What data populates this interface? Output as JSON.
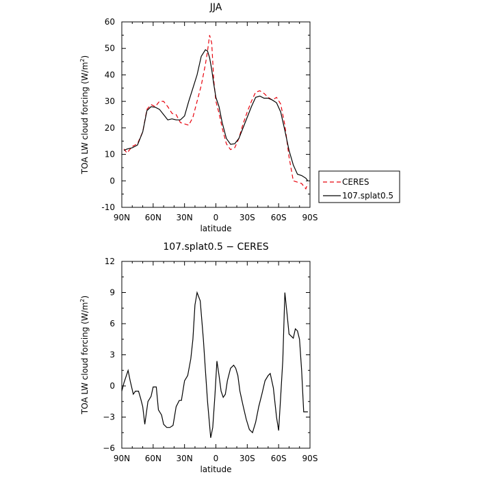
{
  "chart_data": [
    {
      "type": "line",
      "title": "JJA",
      "xlabel": "latitude",
      "ylabel": "TOA LW cloud forcing (W/m",
      "ylabel_sup": "2",
      "ylabel_end": ")",
      "xlim": [
        90,
        -90
      ],
      "ylim": [
        -10,
        60
      ],
      "x_ticks": [
        90,
        60,
        30,
        0,
        -30,
        -60,
        -90
      ],
      "x_tick_labels": [
        "90N",
        "60N",
        "30N",
        "0",
        "30S",
        "60S",
        "90S"
      ],
      "y_ticks": [
        -10,
        0,
        10,
        20,
        30,
        40,
        50,
        60
      ],
      "y_tick_labels": [
        "-10",
        "0",
        "10",
        "20",
        "30",
        "40",
        "50",
        "60"
      ],
      "legend": "outside-right",
      "series": [
        {
          "name": "CERES",
          "color": "#e8000b",
          "dash": "dashed",
          "x": [
            88,
            85,
            80,
            75,
            70,
            66,
            62,
            58,
            54,
            50,
            46,
            42,
            38,
            34,
            30,
            26,
            22,
            18,
            14,
            10,
            8,
            6,
            4,
            2,
            0,
            -3,
            -6,
            -10,
            -14,
            -18,
            -22,
            -26,
            -30,
            -34,
            -38,
            -42,
            -46,
            -50,
            -54,
            -58,
            -62,
            -66,
            -70,
            -74,
            -78,
            -82,
            -86,
            -88
          ],
          "y": [
            12,
            10.5,
            13,
            14,
            18.5,
            27,
            28.8,
            28,
            30,
            30,
            28,
            25.5,
            25,
            22,
            21.5,
            21,
            24,
            30,
            36,
            44,
            49,
            55,
            52,
            38,
            30,
            25.5,
            20,
            14,
            11.8,
            12.5,
            16,
            21.5,
            26,
            30,
            33.5,
            34,
            33,
            31.5,
            30.5,
            31.5,
            29,
            21,
            9,
            0,
            -0.5,
            -1,
            -3,
            -1
          ]
        },
        {
          "name": "107.splat0.5",
          "color": "#000000",
          "dash": "solid",
          "x": [
            88,
            85,
            80,
            75,
            70,
            66,
            62,
            58,
            54,
            50,
            46,
            42,
            38,
            34,
            30,
            26,
            22,
            18,
            14,
            10,
            8,
            6,
            4,
            2,
            0,
            -3,
            -6,
            -10,
            -14,
            -18,
            -22,
            -26,
            -30,
            -34,
            -38,
            -42,
            -46,
            -50,
            -54,
            -58,
            -62,
            -66,
            -70,
            -74,
            -78,
            -82,
            -86,
            -88
          ],
          "y": [
            11.5,
            12,
            12.5,
            13.5,
            18.5,
            26.5,
            28,
            27.8,
            27,
            25,
            23,
            23.4,
            23,
            23,
            24.5,
            30,
            35,
            40,
            47,
            49.5,
            49,
            46.5,
            42,
            36.5,
            31.5,
            28,
            22,
            16,
            13.8,
            14,
            16,
            20,
            24,
            28,
            31.5,
            32,
            31.2,
            31.2,
            30.5,
            29.5,
            26,
            19,
            11.5,
            6,
            2.5,
            2,
            1,
            0
          ]
        }
      ]
    },
    {
      "type": "line",
      "title": "107.splat0.5 − CERES",
      "xlabel": "latitude",
      "ylabel": "TOA LW cloud forcing (W/m",
      "ylabel_sup": "2",
      "ylabel_end": ")",
      "xlim": [
        90,
        -90
      ],
      "ylim": [
        -6,
        12
      ],
      "x_ticks": [
        90,
        60,
        30,
        0,
        -30,
        -60,
        -90
      ],
      "x_tick_labels": [
        "90N",
        "60N",
        "30N",
        "0",
        "30S",
        "60S",
        "90S"
      ],
      "y_ticks": [
        -6,
        -3,
        0,
        3,
        6,
        9,
        12
      ],
      "y_tick_labels": [
        "−6",
        "−3",
        "0",
        "3",
        "6",
        "9",
        "12"
      ],
      "legend": "none",
      "series": [
        {
          "color": "#000000",
          "dash": "solid",
          "x": [
            90,
            88,
            84,
            82,
            79,
            77,
            74,
            72,
            70,
            68,
            65,
            62,
            60,
            57,
            55,
            52,
            50,
            47,
            44,
            41,
            38,
            35,
            33,
            30,
            27,
            24,
            22,
            20,
            18,
            15,
            12,
            10,
            8,
            5,
            3,
            1,
            -1,
            -3,
            -5,
            -7,
            -9,
            -11,
            -14,
            -17,
            -19,
            -21,
            -23,
            -26,
            -29,
            -32,
            -35,
            -38,
            -41,
            -44,
            -47,
            -50,
            -52,
            -55,
            -58,
            -60,
            -62,
            -64,
            -66,
            -68,
            -70,
            -72,
            -74,
            -76,
            -78,
            -80,
            -82,
            -84,
            -86,
            -88
          ],
          "y": [
            -0.5,
            0.3,
            1.5,
            0.5,
            -0.8,
            -0.5,
            -0.5,
            -1.2,
            -2,
            -3.7,
            -1.5,
            -1,
            -0.1,
            -0.1,
            -2.3,
            -2.8,
            -3.7,
            -4,
            -4,
            -3.8,
            -2,
            -1.4,
            -1.4,
            0.5,
            1,
            2.6,
            4.5,
            7.8,
            9,
            8.2,
            4.5,
            1.5,
            -1.5,
            -5,
            -4,
            -1,
            2.4,
            1,
            -0.5,
            -1.1,
            -0.8,
            0.5,
            1.7,
            2,
            1.7,
            1,
            -0.5,
            -1.9,
            -3.2,
            -4.2,
            -4.5,
            -3.5,
            -2,
            -0.8,
            0.5,
            1,
            1.2,
            -0.2,
            -3,
            -4.3,
            -1,
            2.5,
            9,
            7,
            5,
            4.8,
            4.6,
            5.5,
            5.3,
            4.5,
            1.5,
            -2.5,
            -2.5,
            -2.5
          ]
        }
      ]
    }
  ]
}
